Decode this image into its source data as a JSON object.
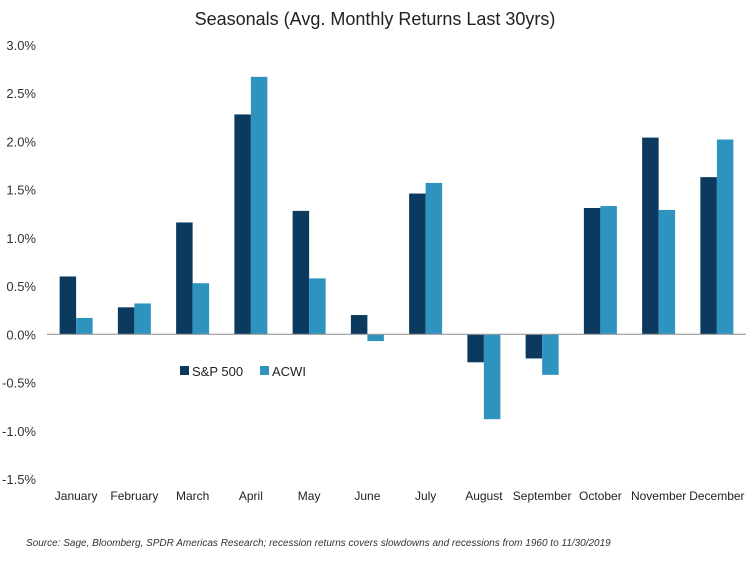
{
  "chart_data": {
    "type": "bar",
    "title": "Seasonals (Avg. Monthly Returns Last 30yrs)",
    "xlabel": "",
    "ylabel": "",
    "ylim": [
      -1.5,
      3.0
    ],
    "yticks": [
      3.0,
      2.5,
      2.0,
      1.5,
      1.0,
      0.5,
      0.0,
      -0.5,
      -1.0,
      -1.5
    ],
    "ytick_labels": [
      "3.0%",
      "2.5%",
      "2.0%",
      "1.5%",
      "1.0%",
      "0.5%",
      "0.0%",
      "-0.5%",
      "-1.0%",
      "-1.5%"
    ],
    "grid": false,
    "legend_position": "center-left",
    "categories": [
      "January",
      "February",
      "March",
      "April",
      "May",
      "June",
      "July",
      "August",
      "September",
      "October",
      "November",
      "December"
    ],
    "series": [
      {
        "name": "S&P 500",
        "color": "#0b3a5e",
        "values": [
          0.6,
          0.28,
          1.16,
          2.28,
          1.28,
          0.2,
          1.46,
          -0.29,
          -0.25,
          1.31,
          2.04,
          1.63
        ]
      },
      {
        "name": "ACWI",
        "color": "#2e93bf",
        "values": [
          0.17,
          0.32,
          0.53,
          2.67,
          0.58,
          -0.07,
          1.57,
          -0.88,
          -0.42,
          1.33,
          1.29,
          2.02
        ]
      }
    ],
    "source": "Source: Sage, Bloomberg, SPDR Americas Research; recession returns covers slowdowns and recessions from 1960 to 11/30/2019"
  }
}
